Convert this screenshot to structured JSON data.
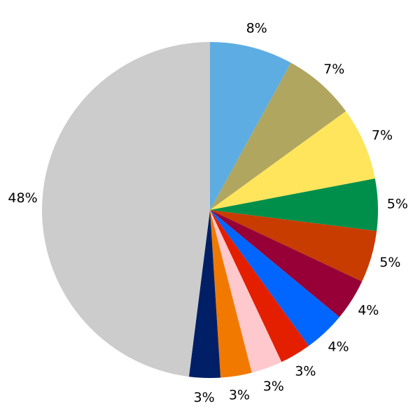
{
  "chart_data": {
    "type": "pie",
    "start": "top",
    "direction": "clockwise",
    "slices": [
      {
        "label": "8%",
        "value": 8,
        "color": "#5dade2"
      },
      {
        "label": "7%",
        "value": 7,
        "color": "#b0a660"
      },
      {
        "label": "7%",
        "value": 7,
        "color": "#ffe55c"
      },
      {
        "label": "5%",
        "value": 5,
        "color": "#008f4a"
      },
      {
        "label": "5%",
        "value": 5,
        "color": "#c83c00"
      },
      {
        "label": "4%",
        "value": 4,
        "color": "#960036"
      },
      {
        "label": "4%",
        "value": 4,
        "color": "#0066ff"
      },
      {
        "label": "3%",
        "value": 3,
        "color": "#e31f00"
      },
      {
        "label": "3%",
        "value": 3,
        "color": "#ffc8cc"
      },
      {
        "label": "3%",
        "value": 3,
        "color": "#f27900"
      },
      {
        "label": "3%",
        "value": 3,
        "color": "#001f66"
      },
      {
        "label": "48%",
        "value": 48,
        "color": "#cccccc"
      }
    ]
  }
}
